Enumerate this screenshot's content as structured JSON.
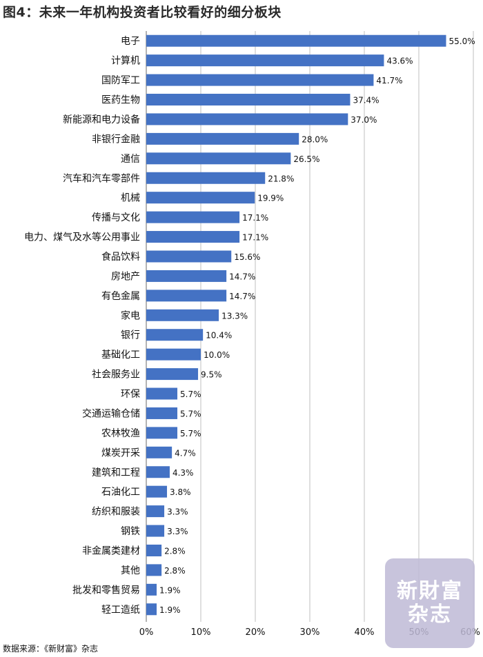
{
  "title": "图4：未来一年机构投资者比较看好的细分板块",
  "source": "数据来源：《新财富》杂志",
  "watermark": {
    "line1": "新財富",
    "line2": "杂志"
  },
  "colors": {
    "bar": "#4472c4",
    "grid": "#bfbfbf",
    "axis": "#808080"
  },
  "chart_data": {
    "type": "bar",
    "orientation": "horizontal",
    "title": "",
    "xlabel": "",
    "ylabel": "",
    "xlim": [
      0,
      60
    ],
    "xticks": [
      "0%",
      "10%",
      "20%",
      "30%",
      "40%",
      "50%",
      "60%"
    ],
    "grid": "vertical",
    "categories": [
      "电子",
      "计算机",
      "国防军工",
      "医药生物",
      "新能源和电力设备",
      "非银行金融",
      "通信",
      "汽车和汽车零部件",
      "机械",
      "传播与文化",
      "电力、煤气及水等公用事业",
      "食品饮料",
      "房地产",
      "有色金属",
      "家电",
      "银行",
      "基础化工",
      "社会服务业",
      "环保",
      "交通运输仓储",
      "农林牧渔",
      "煤炭开采",
      "建筑和工程",
      "石油化工",
      "纺织和服装",
      "钢铁",
      "非金属类建材",
      "其他",
      "批发和零售贸易",
      "轻工造纸"
    ],
    "values": [
      55.0,
      43.6,
      41.7,
      37.4,
      37.0,
      28.0,
      26.5,
      21.8,
      19.9,
      17.1,
      17.1,
      15.6,
      14.7,
      14.7,
      13.3,
      10.4,
      10.0,
      9.5,
      5.7,
      5.7,
      5.7,
      4.7,
      4.3,
      3.8,
      3.3,
      3.3,
      2.8,
      2.8,
      1.9,
      1.9
    ],
    "value_labels": [
      "55.0%",
      "43.6%",
      "41.7%",
      "37.4%",
      "37.0%",
      "28.0%",
      "26.5%",
      "21.8%",
      "19.9%",
      "17.1%",
      "17.1%",
      "15.6%",
      "14.7%",
      "14.7%",
      "13.3%",
      "10.4%",
      "10.0%",
      "9.5%",
      "5.7%",
      "5.7%",
      "5.7%",
      "4.7%",
      "4.3%",
      "3.8%",
      "3.3%",
      "3.3%",
      "2.8%",
      "2.8%",
      "1.9%",
      "1.9%"
    ]
  }
}
